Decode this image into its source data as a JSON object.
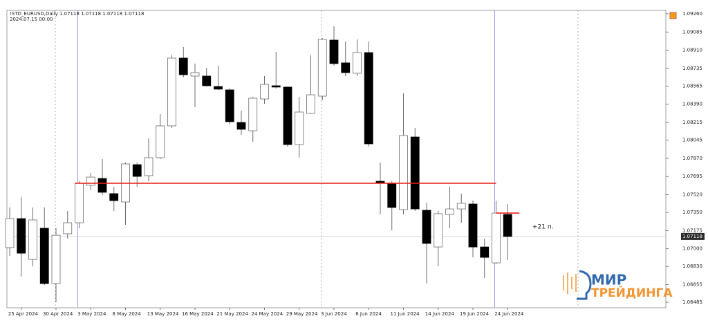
{
  "chart_data": {
    "type": "candlestick",
    "header": "!STD_EURUSD,Daily  1.07118 1.07118 1.07118 1.07118",
    "subheader": "2024.07.15 00:00",
    "annotation": "+21 п.",
    "watermark": [
      "МИР",
      "ТРЕЙДИНГА"
    ],
    "categories": [
      null,
      "25 Apr 2024",
      null,
      null,
      "30 Apr 2024",
      null,
      null,
      "3 May 2024",
      null,
      null,
      "8 May 2024",
      null,
      null,
      "13 May 2024",
      null,
      null,
      "16 May 2024",
      null,
      null,
      "21 May 2024",
      null,
      null,
      "24 May 2024",
      null,
      null,
      "29 May 2024",
      null,
      null,
      "3 Jun 2024",
      null,
      null,
      "6 Jun 2024",
      null,
      null,
      "11 Jun 2024",
      null,
      null,
      "14 Jun 2024",
      null,
      null,
      "19 Jun 2024",
      null,
      null,
      "24 Jun 2024"
    ],
    "open": [
      1.07011,
      1.0729,
      1.06897,
      1.07197,
      1.06665,
      1.07144,
      1.0725,
      1.0761,
      1.07676,
      1.0753,
      1.0745,
      1.07809,
      1.07703,
      1.07876,
      1.08182,
      1.08834,
      1.08661,
      1.08661,
      1.08561,
      1.08528,
      1.08215,
      1.08135,
      1.08441,
      1.08568,
      1.08555,
      1.08002,
      1.08302,
      1.08468,
      1.09007,
      1.08788,
      1.08688,
      1.08887,
      1.07649,
      1.0763,
      1.07377,
      1.08075,
      1.0737,
      1.07017,
      1.0733,
      1.07383,
      1.0743,
      1.07017,
      1.06864,
      1.0733
    ],
    "high": [
      1.07397,
      1.07496,
      1.07397,
      1.07397,
      1.07197,
      1.07363,
      1.07649,
      1.07729,
      1.07862,
      1.07596,
      1.07829,
      1.07829,
      1.08062,
      1.08295,
      1.08861,
      1.08941,
      1.08781,
      1.08741,
      1.08761,
      1.08541,
      1.08328,
      1.08461,
      1.08661,
      1.08894,
      1.08561,
      1.08461,
      1.08861,
      1.09027,
      1.0914,
      1.08994,
      1.09014,
      1.08994,
      1.07829,
      1.07649,
      1.08495,
      1.08162,
      1.07443,
      1.07363,
      1.07596,
      1.0753,
      1.07463,
      1.07097,
      1.07463,
      1.0743
    ],
    "low": [
      1.06931,
      1.06731,
      1.06831,
      1.06651,
      1.06485,
      1.07097,
      1.07197,
      1.07563,
      1.07516,
      1.07363,
      1.0723,
      1.07596,
      1.07649,
      1.07862,
      1.08162,
      1.08648,
      1.08362,
      1.08561,
      1.08528,
      1.08195,
      1.08095,
      1.08029,
      1.08395,
      1.08541,
      1.07982,
      1.07876,
      1.08295,
      1.08428,
      1.08761,
      1.08661,
      1.08661,
      1.07982,
      1.0733,
      1.07177,
      1.0733,
      1.07363,
      1.06665,
      1.06831,
      1.07197,
      1.0725,
      1.06917,
      1.06718,
      1.06851,
      1.06891
    ],
    "close": [
      1.0729,
      1.06957,
      1.07277,
      1.06665,
      1.0713,
      1.0725,
      1.0763,
      1.07689,
      1.07543,
      1.07463,
      1.07816,
      1.07696,
      1.07876,
      1.08182,
      1.08834,
      1.08674,
      1.08694,
      1.08568,
      1.08535,
      1.08222,
      1.08149,
      1.08448,
      1.08581,
      1.08555,
      1.08002,
      1.08315,
      1.08481,
      1.09014,
      1.08781,
      1.08694,
      1.08887,
      1.08009,
      1.07636,
      1.07397,
      1.08089,
      1.07383,
      1.07051,
      1.07337,
      1.07383,
      1.07437,
      1.07017,
      1.06917,
      1.07343,
      1.07118
    ],
    "up_color": "#ffffff",
    "down_color": "#000000",
    "outline_color": "#6b6b6b",
    "ylim": [
      1.06432,
      1.09293
    ],
    "yticks": [
      {
        "value": 1.0926,
        "label": "1.09260"
      },
      {
        "value": 1.09085,
        "label": "1.09085"
      },
      {
        "value": 1.0891,
        "label": "1.08910"
      },
      1.08735,
      1.08565,
      {
        "value": 1.0839,
        "label": "1.08390"
      },
      1.08215,
      1.08045,
      {
        "value": 1.0787,
        "label": "1.07870"
      },
      1.07695,
      {
        "value": 1.0752,
        "label": "1.07520"
      },
      {
        "value": 1.0735,
        "label": "1.07350"
      },
      {
        "value": 1.07175,
        "label": "1.07175"
      },
      {
        "value": 1.07,
        "label": "1.07000"
      },
      {
        "value": 1.0683,
        "label": "1.06830"
      },
      1.06655,
      1.06485
    ],
    "last_price": 1.07118,
    "levels": [
      {
        "value": 1.0763,
        "color": "#e8201a"
      },
      {
        "value": 1.07343,
        "color": "#e8201a"
      }
    ]
  }
}
